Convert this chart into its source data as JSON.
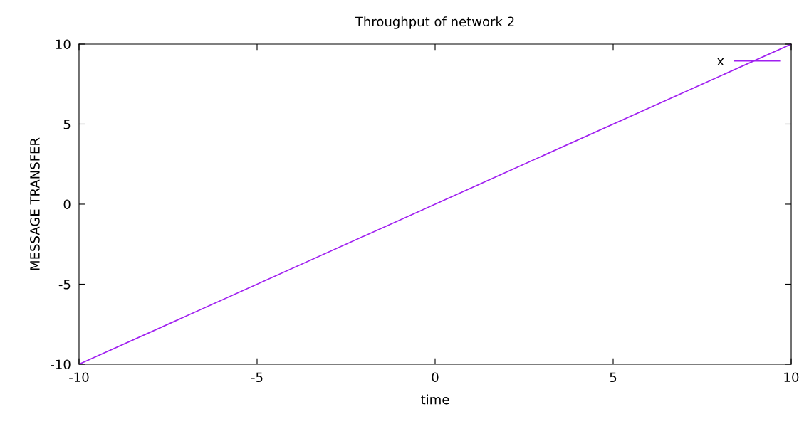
{
  "chart_data": {
    "type": "line",
    "title": "Throughput of network 2",
    "xlabel": "time",
    "ylabel": "MESSAGE TRANSFER",
    "x": [
      -10,
      10
    ],
    "series": [
      {
        "name": "x",
        "color": "#a020f0",
        "values": [
          -10,
          10
        ]
      }
    ],
    "xlim": [
      -10,
      10
    ],
    "ylim": [
      -10,
      10
    ],
    "xticks": [
      -10,
      -5,
      0,
      5,
      10
    ],
    "yticks": [
      -10,
      -5,
      0,
      5,
      10
    ],
    "grid": false,
    "legend": "top right",
    "marker": "none",
    "line_style": "solid"
  }
}
